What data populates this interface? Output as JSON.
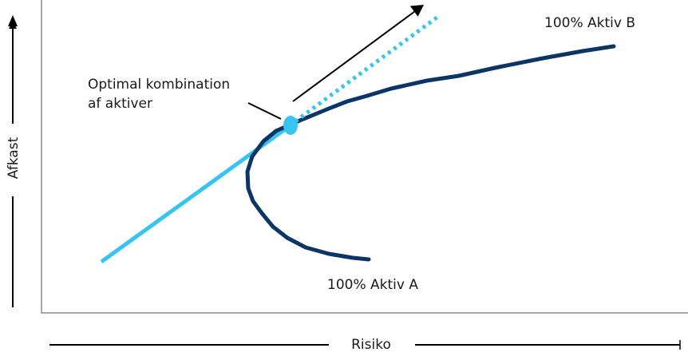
{
  "labels": {
    "asset_b": "100% Aktiv B",
    "asset_a": "100% Aktiv A",
    "optimal_line1": "Optimal kombination",
    "optimal_line2": "af aktiver",
    "y_axis": "Afkast",
    "x_axis": "Risiko"
  },
  "colors": {
    "frontier": "#0b3566",
    "capital_line": "#38c4f1",
    "optimal_point": "#38c4f1",
    "plot_frame": "#8a8a8a",
    "axis_arrows": "#000000",
    "text": "#1a1a1a"
  }
}
